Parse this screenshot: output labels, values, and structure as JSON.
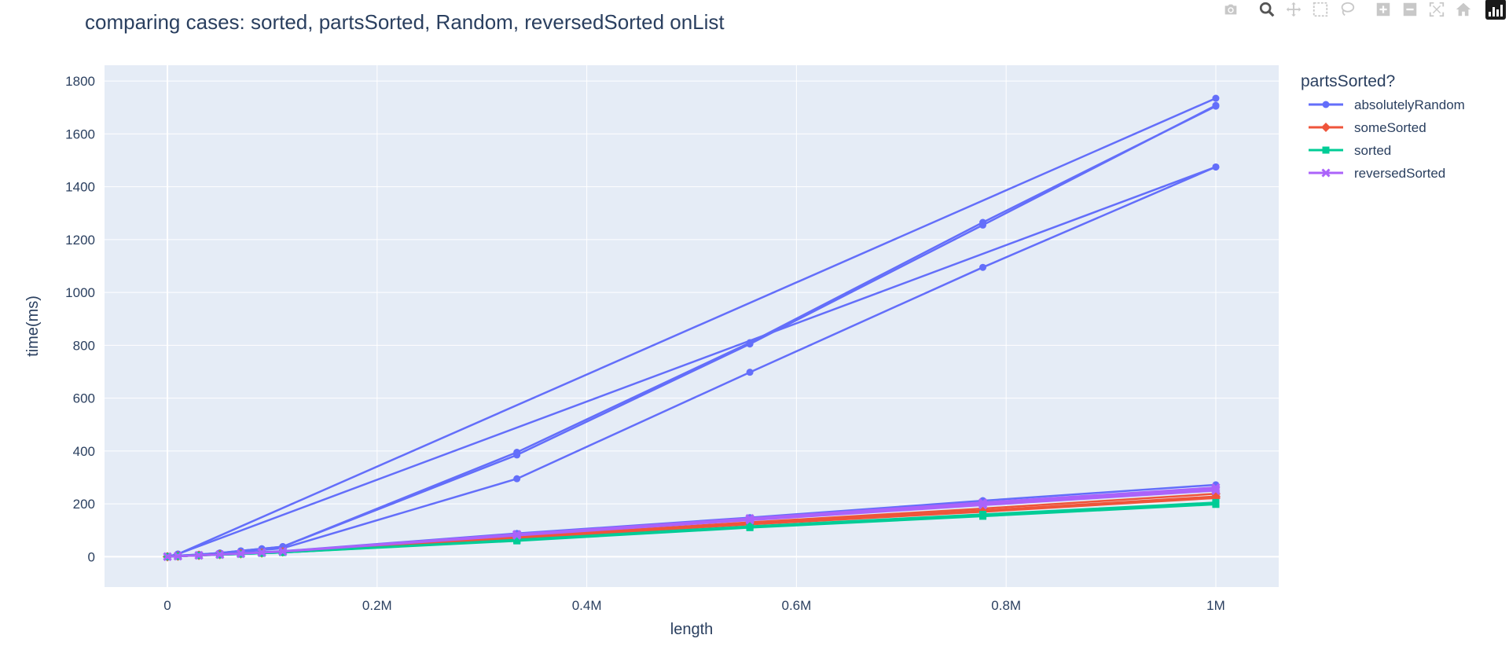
{
  "chart_data": {
    "type": "line",
    "title": "comparing cases: sorted, partsSorted, Random, reversedSorted onList",
    "xlabel": "length",
    "ylabel": "time(ms)",
    "xlim": [
      -60000,
      1060000
    ],
    "ylim": [
      -115,
      1860
    ],
    "x_ticks": [
      {
        "value": 0,
        "label": "0"
      },
      {
        "value": 200000,
        "label": "0.2M"
      },
      {
        "value": 400000,
        "label": "0.4M"
      },
      {
        "value": 600000,
        "label": "0.6M"
      },
      {
        "value": 800000,
        "label": "0.8M"
      },
      {
        "value": 1000000,
        "label": "1M"
      }
    ],
    "y_ticks": [
      {
        "value": 0,
        "label": "0"
      },
      {
        "value": 200,
        "label": "200"
      },
      {
        "value": 400,
        "label": "400"
      },
      {
        "value": 600,
        "label": "600"
      },
      {
        "value": 800,
        "label": "800"
      },
      {
        "value": 1000,
        "label": "1000"
      },
      {
        "value": 1200,
        "label": "1200"
      },
      {
        "value": 1400,
        "label": "1400"
      },
      {
        "value": 1600,
        "label": "1600"
      },
      {
        "value": 1800,
        "label": "1800"
      }
    ],
    "grid": true,
    "legend_title": "partsSorted?",
    "legend_position": "top-right",
    "colors": {
      "plot_bg": "#E5ECF6",
      "grid": "#ffffff",
      "absolutelyRandom": "#636efa",
      "someSorted": "#EF553B",
      "sorted": "#00cc96",
      "reversedSorted": "#ab63fa"
    },
    "series": [
      {
        "name": "absolutelyRandom",
        "marker": "circle",
        "color": "#636efa",
        "lines": [
          {
            "x": [
              0,
              10000,
              1000000
            ],
            "y": [
              0,
              10,
              1735
            ]
          },
          {
            "x": [
              0,
              10000,
              1000000
            ],
            "y": [
              0,
              10,
              1475
            ]
          },
          {
            "x": [
              0,
              10000,
              30000,
              50000,
              70000,
              90000,
              110000,
              333333,
              555555,
              777777,
              1000000
            ],
            "y": [
              0,
              4,
              8,
              14,
              22,
              30,
              38,
              395,
              810,
              1265,
              1705
            ]
          },
          {
            "x": [
              0,
              10000,
              30000,
              50000,
              70000,
              90000,
              110000,
              333333,
              555555,
              777777,
              1000000
            ],
            "y": [
              0,
              4,
              8,
              14,
              22,
              30,
              38,
              385,
              805,
              1255,
              1708
            ]
          },
          {
            "x": [
              0,
              10000,
              30000,
              50000,
              70000,
              90000,
              110000,
              333333,
              555555,
              777777,
              1000000
            ],
            "y": [
              0,
              3,
              7,
              12,
              18,
              25,
              32,
              295,
              698,
              1095,
              1475
            ]
          },
          {
            "x": [
              0,
              10000,
              30000,
              50000,
              70000,
              90000,
              110000,
              333333,
              555555,
              777777,
              1000000
            ],
            "y": [
              0,
              2,
              5,
              9,
              13,
              17,
              21,
              88,
              148,
              212,
              272
            ]
          },
          {
            "x": [
              0,
              10000,
              30000,
              50000,
              70000,
              90000,
              110000,
              333333,
              555555,
              777777,
              1000000
            ],
            "y": [
              0,
              2,
              5,
              8,
              12,
              16,
              20,
              82,
              140,
              200,
              258
            ]
          }
        ]
      },
      {
        "name": "someSorted",
        "marker": "diamond",
        "color": "#EF553B",
        "lines": [
          {
            "x": [
              0,
              10000,
              30000,
              50000,
              70000,
              90000,
              110000,
              333333,
              555555,
              777777,
              1000000
            ],
            "y": [
              0,
              2,
              5,
              8,
              11,
              14,
              18,
              72,
              125,
              175,
              228
            ]
          },
          {
            "x": [
              0,
              10000,
              30000,
              50000,
              70000,
              90000,
              110000,
              333333,
              555555,
              777777,
              1000000
            ],
            "y": [
              0,
              2,
              5,
              8,
              11,
              14,
              18,
              70,
              122,
              170,
              222
            ]
          },
          {
            "x": [
              0,
              10000,
              30000,
              50000,
              70000,
              90000,
              110000,
              333333,
              555555,
              777777,
              1000000
            ],
            "y": [
              0,
              2,
              5,
              8,
              11,
              14,
              18,
              75,
              130,
              182,
              238
            ]
          }
        ]
      },
      {
        "name": "sorted",
        "marker": "square",
        "color": "#00cc96",
        "lines": [
          {
            "x": [
              0,
              10000,
              30000,
              50000,
              70000,
              90000,
              110000,
              333333,
              555555,
              777777,
              1000000
            ],
            "y": [
              0,
              2,
              5,
              7,
              10,
              13,
              16,
              62,
              112,
              155,
              200
            ]
          },
          {
            "x": [
              0,
              10000,
              30000,
              50000,
              70000,
              90000,
              110000,
              333333,
              555555,
              777777,
              1000000
            ],
            "y": [
              0,
              2,
              5,
              7,
              10,
              13,
              16,
              60,
              110,
              153,
              198
            ]
          },
          {
            "x": [
              0,
              10000,
              30000,
              50000,
              70000,
              90000,
              110000,
              333333,
              555555,
              777777,
              1000000
            ],
            "y": [
              0,
              2,
              5,
              7,
              10,
              13,
              16,
              64,
              115,
              160,
              205
            ]
          }
        ]
      },
      {
        "name": "reversedSorted",
        "marker": "x",
        "color": "#ab63fa",
        "lines": [
          {
            "x": [
              0,
              10000,
              30000,
              50000,
              70000,
              90000,
              110000,
              333333,
              555555,
              777777,
              1000000
            ],
            "y": [
              0,
              2,
              5,
              8,
              12,
              16,
              20,
              85,
              145,
              205,
              262
            ]
          },
          {
            "x": [
              0,
              10000,
              30000,
              50000,
              70000,
              90000,
              110000,
              333333,
              555555,
              777777,
              1000000
            ],
            "y": [
              0,
              2,
              5,
              8,
              11,
              15,
              19,
              80,
              138,
              195,
              250
            ]
          },
          {
            "x": [
              0,
              10000,
              30000,
              50000,
              70000,
              90000,
              110000,
              333333,
              555555,
              777777,
              1000000
            ],
            "y": [
              0,
              2,
              5,
              8,
              12,
              16,
              20,
              84,
              142,
              200,
              255
            ]
          }
        ]
      }
    ]
  },
  "modebar": {
    "buttons": [
      "camera-icon",
      "zoom-icon",
      "pan-icon",
      "box-select-icon",
      "lasso-select-icon",
      "zoom-in-icon",
      "zoom-out-icon",
      "autoscale-icon",
      "reset-axes-icon",
      "plotly-logo-icon"
    ]
  }
}
